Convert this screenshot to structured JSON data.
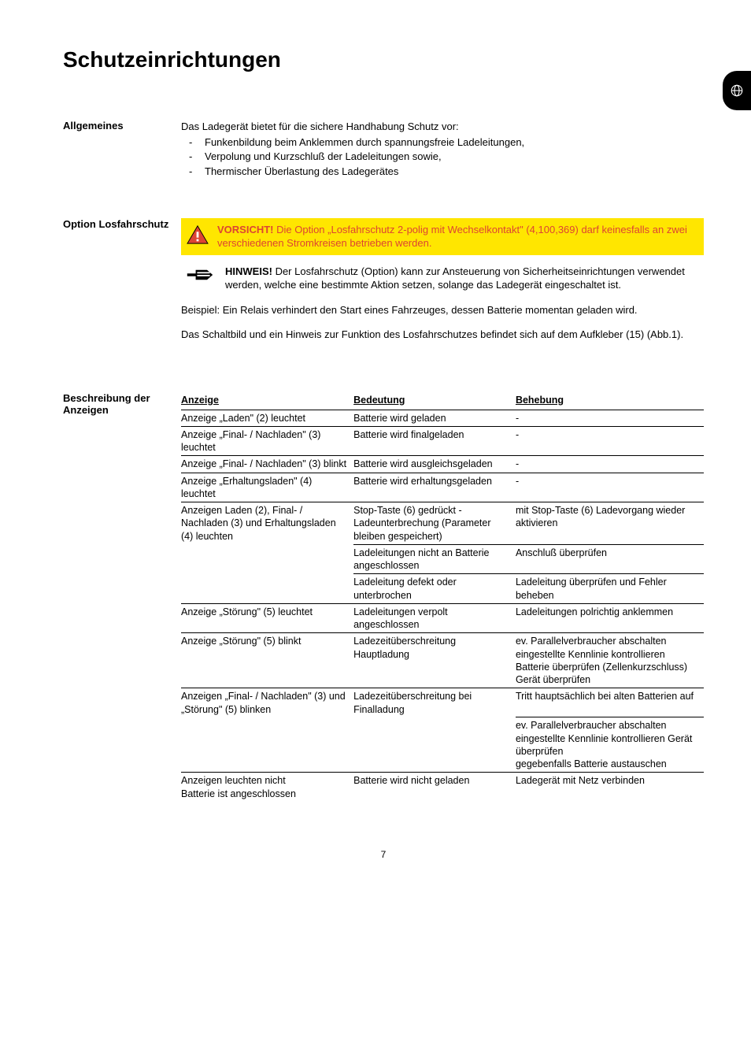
{
  "title": "Schutzeinrichtungen",
  "page_number": "7",
  "tab_icon": "language-de",
  "sections": {
    "allgemeines": {
      "label": "Allgemeines",
      "intro": "Das Ladegerät bietet für die sichere Handhabung Schutz vor:",
      "bullets": [
        "Funkenbildung beim Anklemmen durch spannungsfreie Ladeleitungen,",
        "Verpolung und Kurzschluß der Ladeleitungen sowie,",
        "Thermischer Überlastung des Ladegerätes"
      ]
    },
    "losfahrschutz": {
      "label": "Option Losfahrschutz",
      "warning_bold": "VORSICHT!",
      "warning_text": " Die Option „Losfahrschutz 2-polig mit Wechselkontakt\" (4,100,369) darf keinesfalls an zwei verschiedenen Stromkreisen betrieben werden.",
      "note_bold": "HINWEIS!",
      "note_text": " Der Losfahrschutz (Option) kann zur Ansteuerung von Sicherheitseinrichtungen verwendet werden, welche eine bestimmte Aktion setzen, solange das Ladegerät eingeschaltet ist.",
      "para1": "Beispiel: Ein Relais verhindert den Start eines Fahrzeuges, dessen Batterie momentan geladen wird.",
      "para2": "Das Schaltbild und ein Hinweis zur Funktion des Losfahrschutzes befindet sich auf dem Aufkleber (15) (Abb.1)."
    },
    "anzeigen": {
      "label": "Beschreibung der Anzeigen",
      "headers": [
        "Anzeige",
        "Bedeutung",
        "Behebung"
      ],
      "rows": [
        {
          "a": "Anzeige „Laden\" (2) leuchtet",
          "b": "Batterie wird geladen",
          "c": "-"
        },
        {
          "a": "Anzeige „Final- / Nachladen\" (3) leuchtet",
          "b": "Batterie wird finalgeladen",
          "c": "-"
        },
        {
          "a": "Anzeige „Final- / Nachladen\" (3) blinkt",
          "b": "Batterie wird ausgleichsgeladen",
          "c": "-"
        },
        {
          "a": "Anzeige „Erhaltungsladen\" (4) leuchtet",
          "b": "Batterie wird erhaltungsgeladen",
          "c": "-"
        },
        {
          "a": "Anzeigen Laden (2), Final- / Nachladen (3) und Erhaltungsladen (4) leuchten",
          "b": "Stop-Taste (6) gedrückt - Ladeunterbrechung (Parameter bleiben gespeichert)",
          "c": "mit Stop-Taste (6) Ladevorgang wieder aktivieren"
        },
        {
          "a": "",
          "b": "Ladeleitungen nicht an Batterie angeschlossen",
          "c": "Anschluß überprüfen",
          "cont": true
        },
        {
          "a": "",
          "b": "Ladeleitung defekt oder unterbrochen",
          "c": "Ladeleitung überprüfen und Fehler beheben",
          "cont": true
        },
        {
          "a": "Anzeige „Störung\" (5) leuchtet",
          "b": "Ladeleitungen verpolt angeschlossen",
          "c": "Ladeleitungen polrichtig anklemmen"
        },
        {
          "a": "Anzeige „Störung\" (5) blinkt",
          "b": "Ladezeitüberschreitung Hauptladung",
          "c": "ev. Parallelverbraucher abschalten eingestellte Kennlinie kontrollieren Batterie überprüfen (Zellenkurzschluss) Gerät überprüfen"
        },
        {
          "a": "Anzeigen „Final- / Nachladen\" (3) und „Störung\" (5) blinken",
          "b": "Ladezeitüberschreitung bei Finalladung",
          "c": "Tritt hauptsächlich bei alten Batterien auf"
        },
        {
          "a": "",
          "b": "",
          "c": "ev. Parallelverbraucher abschalten eingestellte Kennlinie kontrollieren Gerät überprüfen\ngegebenfalls Batterie austauschen",
          "cont": true
        },
        {
          "a": "Anzeigen leuchten nicht\nBatterie ist angeschlossen",
          "b": "Batterie wird nicht geladen",
          "c": "Ladegerät mit Netz verbinden"
        }
      ]
    }
  },
  "colors": {
    "warning_bg": "#ffe600",
    "warning_text": "#dd4433",
    "text": "#000000",
    "bg": "#ffffff"
  }
}
